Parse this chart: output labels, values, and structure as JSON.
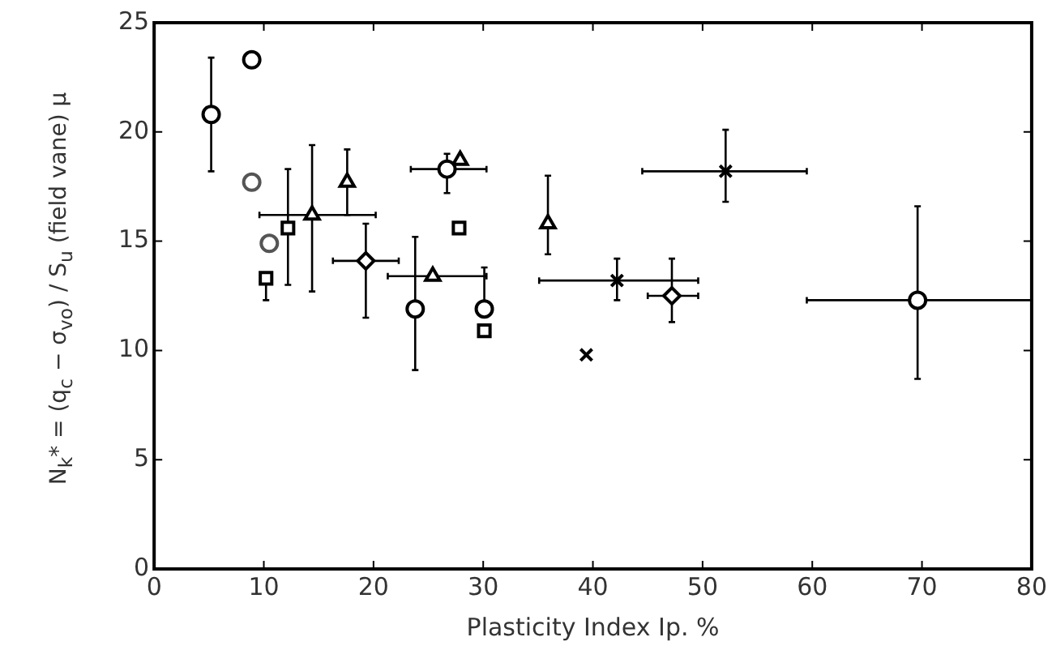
{
  "chart_data": {
    "type": "scatter",
    "xlabel": "Plasticity Index Ip. %",
    "ylabel": "N$_{k}$* = (q$_{c}$ − σ$_{vo}$) / S$_{u}$ (field vane) μ",
    "xlim": [
      0,
      80
    ],
    "ylim": [
      0,
      25
    ],
    "xticks": [
      0,
      10,
      20,
      30,
      40,
      50,
      60,
      70,
      80
    ],
    "yticks": [
      0,
      5,
      10,
      15,
      20,
      25
    ],
    "grid": false,
    "legend": false,
    "series": [
      {
        "color": "#000000",
        "marker": "circle",
        "x": [
          5.2
        ],
        "values": [
          20.8
        ],
        "errors": [
          [
            18.2,
            23.4
          ]
        ]
      },
      {
        "color": "#000000",
        "marker": "circle",
        "x": [
          8.9
        ],
        "values": [
          23.3
        ]
      },
      {
        "color": "#555555",
        "marker": "circle",
        "x": [
          8.9
        ],
        "values": [
          17.7
        ]
      },
      {
        "color": "#555555",
        "marker": "circle",
        "x": [
          10.5
        ],
        "values": [
          14.9
        ]
      },
      {
        "color": "#000000",
        "marker": "square",
        "x": [
          10.2
        ],
        "values": [
          13.3
        ],
        "errors": [
          [
            12.3,
            13.3
          ]
        ]
      },
      {
        "color": "#000000",
        "marker": "square",
        "x": [
          12.2
        ],
        "values": [
          15.6
        ],
        "errors": [
          [
            13.0,
            18.3
          ]
        ]
      },
      {
        "color": "#000000",
        "marker": "triangle",
        "x": [
          14.4
        ],
        "values": [
          16.2
        ],
        "errors": [
          [
            12.7,
            19.4
          ]
        ],
        "xerrors": [
          [
            9.6,
            20.2
          ]
        ]
      },
      {
        "color": "#000000",
        "marker": "triangle",
        "x": [
          17.6
        ],
        "values": [
          17.7
        ],
        "errors": [
          [
            16.2,
            19.2
          ]
        ]
      },
      {
        "color": "#000000",
        "marker": "diamond",
        "x": [
          19.3
        ],
        "values": [
          14.1
        ],
        "errors": [
          [
            11.5,
            15.8
          ]
        ],
        "xerrors": [
          [
            16.3,
            22.3
          ]
        ]
      },
      {
        "color": "#000000",
        "marker": "circle",
        "x": [
          26.7
        ],
        "values": [
          18.3
        ],
        "errors": [
          [
            17.2,
            19.0
          ]
        ],
        "xerrors": [
          [
            23.4,
            30.3
          ]
        ]
      },
      {
        "color": "#000000",
        "marker": "triangle",
        "x": [
          27.9
        ],
        "values": [
          18.7
        ]
      },
      {
        "color": "#000000",
        "marker": "square",
        "x": [
          27.8
        ],
        "values": [
          15.6
        ]
      },
      {
        "color": "#000000",
        "marker": "triangle",
        "x": [
          25.4
        ],
        "values": [
          13.4
        ],
        "xerrors": [
          [
            21.3,
            30.3
          ]
        ]
      },
      {
        "color": "#000000",
        "marker": "circle",
        "x": [
          23.8
        ],
        "values": [
          11.9
        ],
        "errors": [
          [
            9.1,
            15.2
          ]
        ]
      },
      {
        "color": "#000000",
        "marker": "circle",
        "x": [
          30.1
        ],
        "values": [
          11.9
        ],
        "errors": [
          [
            11.9,
            13.8
          ]
        ]
      },
      {
        "color": "#000000",
        "marker": "square",
        "x": [
          30.1
        ],
        "values": [
          10.9
        ]
      },
      {
        "color": "#000000",
        "marker": "cross",
        "x": [
          39.4
        ],
        "values": [
          9.8
        ]
      },
      {
        "color": "#000000",
        "marker": "triangle",
        "x": [
          35.9
        ],
        "values": [
          15.8
        ],
        "errors": [
          [
            14.4,
            18.0
          ]
        ]
      },
      {
        "color": "#000000",
        "marker": "cross",
        "x": [
          42.2
        ],
        "values": [
          13.2
        ],
        "errors": [
          [
            12.3,
            14.2
          ]
        ],
        "xerrors": [
          [
            35.1,
            49.6
          ]
        ]
      },
      {
        "color": "#000000",
        "marker": "diamond",
        "x": [
          47.2
        ],
        "values": [
          12.5
        ],
        "errors": [
          [
            11.3,
            14.2
          ]
        ],
        "xerrors": [
          [
            45.0,
            49.6
          ]
        ]
      },
      {
        "color": "#000000",
        "marker": "cross",
        "x": [
          52.1
        ],
        "values": [
          18.2
        ],
        "errors": [
          [
            16.8,
            20.1
          ]
        ],
        "xerrors": [
          [
            44.5,
            59.5
          ]
        ]
      },
      {
        "color": "#000000",
        "marker": "circle",
        "x": [
          69.6
        ],
        "values": [
          12.3
        ],
        "errors": [
          [
            8.7,
            16.6
          ]
        ],
        "xerrors": [
          [
            59.5,
            80
          ]
        ]
      }
    ]
  }
}
